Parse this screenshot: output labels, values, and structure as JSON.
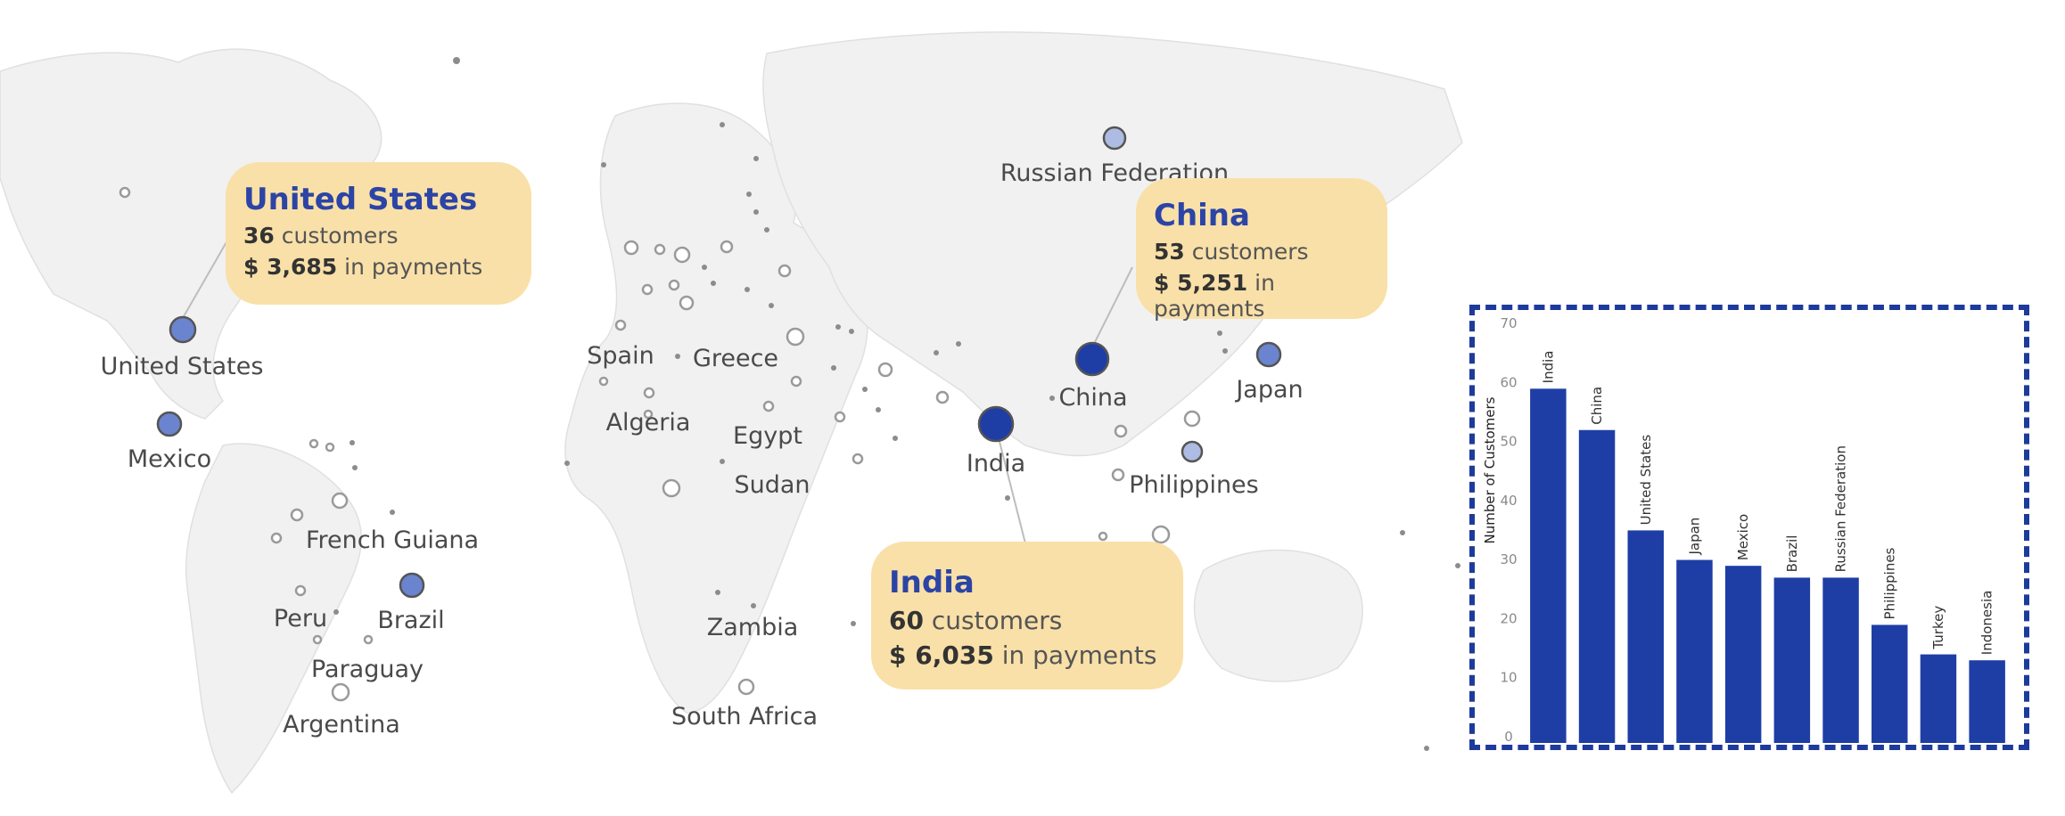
{
  "colors": {
    "bar": "#1e3ea6",
    "bubble_dark": "#1e3ea6",
    "bubble_mid": "#6b84cf",
    "bubble_light": "#aebbe2",
    "callout_bg": "#f9e0a8"
  },
  "map": {
    "labels": {
      "russia": "Russian Federation",
      "us": "United States",
      "mexico": "Mexico",
      "spain": "Spain",
      "greece": "Greece",
      "algeria": "Algeria",
      "egypt": "Egypt",
      "sudan": "Sudan",
      "china": "China",
      "japan": "Japan",
      "india": "India",
      "philippines": "Philippines",
      "french_guiana": "French Guiana",
      "peru": "Peru",
      "brazil": "Brazil",
      "paraguay": "Paraguay",
      "argentina": "Argentina",
      "zambia": "Zambia",
      "south_africa": "South Africa"
    },
    "callouts": {
      "us": {
        "country": "United States",
        "count": "36",
        "count_suffix": "customers",
        "amount": "$ 3,685",
        "amount_suffix": "in payments"
      },
      "china": {
        "country": "China",
        "count": "53",
        "count_suffix": "customers",
        "amount": "$ 5,251",
        "amount_suffix": "in payments"
      },
      "india": {
        "country": "India",
        "count": "60",
        "count_suffix": "customers",
        "amount": "$ 6,035",
        "amount_suffix": "in payments"
      }
    }
  },
  "chart_data": {
    "type": "bar",
    "ylabel": "Number of Customers",
    "ylim": [
      0,
      70
    ],
    "yticks": [
      0,
      10,
      20,
      30,
      40,
      50,
      60,
      70
    ],
    "categories": [
      "India",
      "China",
      "United States",
      "Japan",
      "Mexico",
      "Brazil",
      "Russian Federation",
      "Philippines",
      "Turkey",
      "Indonesia"
    ],
    "values": [
      60,
      53,
      36,
      31,
      30,
      28,
      28,
      20,
      15,
      14
    ]
  }
}
